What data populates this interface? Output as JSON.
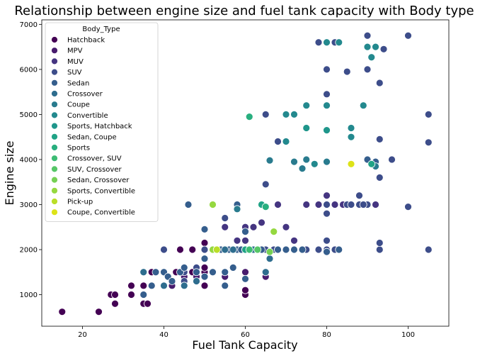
{
  "chart_data": {
    "type": "scatter",
    "title": "Relationship between engine size and fuel tank capacity with Body type",
    "xlabel": "Fuel Tank Capacity",
    "ylabel": "Engine size",
    "xlim": [
      10,
      110
    ],
    "ylim": [
      300,
      7100
    ],
    "xticks": [
      20,
      40,
      60,
      80,
      100
    ],
    "yticks": [
      1000,
      2000,
      3000,
      4000,
      5000,
      6000,
      7000
    ],
    "grid": false,
    "legend": {
      "title": "Body_Type",
      "placement": "top-left"
    },
    "series": [
      {
        "name": "Hatchback",
        "color": "#440154",
        "points": [
          [
            15,
            620
          ],
          [
            24,
            620
          ],
          [
            27,
            1000
          ],
          [
            28,
            1000
          ],
          [
            28,
            800
          ],
          [
            32,
            1000
          ],
          [
            32,
            1200
          ],
          [
            35,
            800
          ],
          [
            35,
            1200
          ],
          [
            36,
            800
          ],
          [
            37,
            1200
          ],
          [
            37,
            1500
          ],
          [
            40,
            1200
          ],
          [
            42,
            1200
          ],
          [
            43,
            1500
          ],
          [
            44,
            2000
          ],
          [
            45,
            1200
          ],
          [
            47,
            1500
          ],
          [
            47,
            2000
          ],
          [
            50,
            1200
          ],
          [
            50,
            1500
          ],
          [
            50,
            2150
          ],
          [
            50,
            1600
          ],
          [
            60,
            1000
          ],
          [
            60,
            1100
          ]
        ]
      },
      {
        "name": "MPV",
        "color": "#481c6e",
        "points": [
          [
            42,
            1200
          ],
          [
            45,
            1400
          ],
          [
            48,
            1400
          ],
          [
            50,
            2000
          ],
          [
            55,
            1400
          ],
          [
            60,
            1500
          ],
          [
            65,
            1400
          ]
        ]
      },
      {
        "name": "MUV",
        "color": "#453581",
        "points": [
          [
            55,
            2500
          ],
          [
            58,
            2200
          ],
          [
            60,
            2200
          ],
          [
            60,
            2500
          ],
          [
            62,
            2500
          ],
          [
            64,
            2600
          ],
          [
            68,
            3000
          ],
          [
            70,
            2500
          ],
          [
            72,
            2200
          ],
          [
            75,
            3000
          ],
          [
            78,
            3000
          ],
          [
            80,
            3200
          ],
          [
            82,
            3000
          ],
          [
            84,
            3000
          ],
          [
            88,
            3000
          ],
          [
            92,
            3000
          ]
        ]
      },
      {
        "name": "SUV",
        "color": "#3d4d8a",
        "points": [
          [
            40,
            1500
          ],
          [
            40,
            2000
          ],
          [
            45,
            1500
          ],
          [
            45,
            1300
          ],
          [
            48,
            1600
          ],
          [
            50,
            2000
          ],
          [
            55,
            2000
          ],
          [
            55,
            2700
          ],
          [
            57,
            2000
          ],
          [
            60,
            2000
          ],
          [
            62,
            2000
          ],
          [
            64,
            2000
          ],
          [
            65,
            2000
          ],
          [
            67,
            2000
          ],
          [
            68,
            2000
          ],
          [
            70,
            2000
          ],
          [
            72,
            2000
          ],
          [
            75,
            2000
          ],
          [
            78,
            2000
          ],
          [
            80,
            2000
          ],
          [
            80,
            2200
          ],
          [
            80,
            2800
          ],
          [
            80,
            3000
          ],
          [
            82,
            2000
          ],
          [
            85,
            3000
          ],
          [
            86,
            3000
          ],
          [
            88,
            3000
          ],
          [
            90,
            3000
          ],
          [
            93,
            2000
          ],
          [
            93,
            2150
          ],
          [
            100,
            2950
          ],
          [
            105,
            2000
          ],
          [
            65,
            3450
          ],
          [
            65,
            5000
          ],
          [
            68,
            4400
          ],
          [
            78,
            6600
          ],
          [
            80,
            6000
          ],
          [
            82,
            6600
          ],
          [
            85,
            5950
          ],
          [
            86,
            3900
          ],
          [
            89,
            3000
          ],
          [
            90,
            6000
          ],
          [
            90,
            6750
          ],
          [
            93,
            5700
          ],
          [
            93,
            4450
          ],
          [
            93,
            3600
          ],
          [
            94,
            6450
          ],
          [
            96,
            4000
          ],
          [
            100,
            6750
          ],
          [
            105,
            5000
          ],
          [
            105,
            4380
          ],
          [
            80,
            5450
          ],
          [
            88,
            3200
          ]
        ]
      },
      {
        "name": "Sedan",
        "color": "#355e8d",
        "points": [
          [
            35,
            1000
          ],
          [
            37,
            1200
          ],
          [
            38,
            1500
          ],
          [
            40,
            1500
          ],
          [
            41,
            1400
          ],
          [
            42,
            1300
          ],
          [
            44,
            1500
          ],
          [
            45,
            1600
          ],
          [
            48,
            1500
          ],
          [
            50,
            1400
          ],
          [
            50,
            1800
          ],
          [
            50,
            2450
          ],
          [
            52,
            1500
          ],
          [
            54,
            2000
          ],
          [
            55,
            1200
          ],
          [
            55,
            1500
          ],
          [
            56,
            2000
          ],
          [
            57,
            1600
          ],
          [
            58,
            2000
          ],
          [
            59,
            2000
          ],
          [
            60,
            1350
          ],
          [
            60,
            2000
          ],
          [
            60,
            2400
          ],
          [
            61,
            2000
          ],
          [
            62,
            2000
          ],
          [
            63,
            2000
          ],
          [
            64,
            2000
          ],
          [
            66,
            1800
          ],
          [
            68,
            2000
          ],
          [
            70,
            2000
          ],
          [
            72,
            2000
          ],
          [
            74,
            2000
          ],
          [
            80,
            1950
          ],
          [
            83,
            2000
          ],
          [
            90,
            4000
          ],
          [
            92,
            3950
          ],
          [
            46,
            3000
          ],
          [
            58,
            3000
          ]
        ]
      },
      {
        "name": "Crossover",
        "color": "#2e6d8e",
        "points": [
          [
            35,
            1500
          ],
          [
            40,
            1200
          ],
          [
            45,
            1200
          ],
          [
            48,
            1300
          ],
          [
            52,
            2000
          ],
          [
            55,
            2000
          ],
          [
            57,
            2000
          ],
          [
            60,
            2000
          ],
          [
            62,
            2000
          ],
          [
            65,
            1500
          ],
          [
            66,
            1800
          ]
        ]
      },
      {
        "name": "Coupe",
        "color": "#297b8e",
        "points": [
          [
            72,
            3950
          ],
          [
            74,
            3800
          ],
          [
            80,
            3950
          ],
          [
            92,
            3850
          ],
          [
            58,
            2900
          ],
          [
            66,
            3980
          ],
          [
            75,
            4000
          ]
        ]
      },
      {
        "name": "Convertible",
        "color": "#23898e",
        "points": [
          [
            70,
            5000
          ],
          [
            72,
            5000
          ],
          [
            75,
            5200
          ],
          [
            80,
            5200
          ],
          [
            86,
            4500
          ],
          [
            89,
            5200
          ],
          [
            90,
            6500
          ],
          [
            91,
            6270
          ],
          [
            92,
            6500
          ],
          [
            80,
            6600
          ],
          [
            83,
            6600
          ],
          [
            70,
            4400
          ],
          [
            77,
            3900
          ],
          [
            86,
            4700
          ]
        ]
      },
      {
        "name": "Sports, Hatchback",
        "color": "#1f968b",
        "points": [
          [
            75,
            4700
          ],
          [
            80,
            4650
          ]
        ]
      },
      {
        "name": "Sedan, Coupe",
        "color": "#20a386",
        "points": [
          [
            60,
            2000
          ],
          [
            64,
            3000
          ],
          [
            91,
            3900
          ]
        ]
      },
      {
        "name": "Sports",
        "color": "#29af7f",
        "points": [
          [
            61,
            4950
          ],
          [
            65,
            2950
          ]
        ]
      },
      {
        "name": "Crossover, SUV",
        "color": "#3dbc74",
        "points": [
          [
            61,
            2000
          ]
        ]
      },
      {
        "name": "SUV, Crossover",
        "color": "#56c667",
        "points": [
          [
            63,
            2000
          ]
        ]
      },
      {
        "name": "Sedan, Crossover",
        "color": "#75d054",
        "points": [
          [
            66,
            1950
          ]
        ]
      },
      {
        "name": "Sports, Convertible",
        "color": "#95d840",
        "points": [
          [
            52,
            3000
          ],
          [
            52,
            2000
          ],
          [
            67,
            2400
          ]
        ]
      },
      {
        "name": "Pick-up",
        "color": "#bade28",
        "points": [
          [
            53,
            2000
          ]
        ]
      },
      {
        "name": "Coupe, Convertible",
        "color": "#dde318",
        "points": [
          [
            86,
            3900
          ]
        ]
      }
    ]
  }
}
